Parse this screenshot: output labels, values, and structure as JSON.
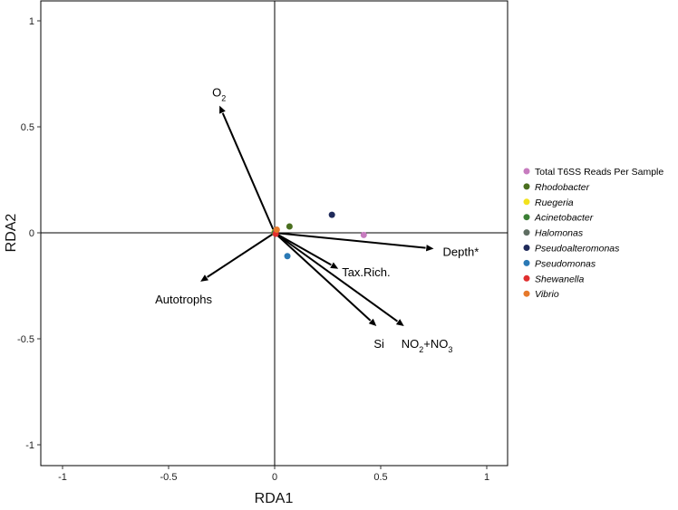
{
  "chart_data": {
    "type": "scatter",
    "title": "",
    "xlabel": "RDA1",
    "ylabel": "RDA2",
    "xlim": [
      -1.1,
      1.1
    ],
    "ylim": [
      -1.1,
      1.1
    ],
    "x_ticks": [
      -1,
      -0.5,
      0,
      0.5,
      1
    ],
    "x_tick_labels": [
      "-1",
      "-0.5",
      "0",
      "0.5",
      "1"
    ],
    "y_ticks": [
      1,
      0.5,
      0,
      -0.5,
      -1
    ],
    "y_tick_labels": [
      "1",
      "0.5",
      "0",
      "-0.5",
      "-1"
    ],
    "grid": false,
    "reference_lines": {
      "x": 0,
      "y": 0
    },
    "vectors": [
      {
        "name": "O2",
        "label": "O",
        "sub": "2",
        "tail": "",
        "x": -0.26,
        "y": 0.6
      },
      {
        "name": "Depth*",
        "label": "Depth*",
        "sub": "",
        "tail": "",
        "x": 0.75,
        "y": -0.075
      },
      {
        "name": "Tax.Rich.",
        "label": "Tax.Rich.",
        "sub": "",
        "tail": "",
        "x": 0.3,
        "y": -0.17
      },
      {
        "name": "Autotrophs",
        "label": "Autotrophs",
        "sub": "",
        "tail": "",
        "x": -0.35,
        "y": -0.23
      },
      {
        "name": "Si",
        "label": "Si",
        "sub": "",
        "tail": "",
        "x": 0.48,
        "y": -0.44
      },
      {
        "name": "NO2+NO3",
        "label": "NO",
        "sub": "2",
        "tail": "+NO",
        "sub2": "3",
        "x": 0.61,
        "y": -0.44
      }
    ],
    "series": [
      {
        "name": "Total T6SS Reads Per Sample",
        "italic": false,
        "color": "#c77cbf",
        "points": [
          [
            0.42,
            -0.01
          ]
        ]
      },
      {
        "name": "Rhodobacter",
        "italic": true,
        "color": "#4a6f1f",
        "points": [
          [
            0.07,
            0.03
          ]
        ]
      },
      {
        "name": "Ruegeria",
        "italic": true,
        "color": "#f2e21d",
        "points": [
          [
            0.0,
            0.005
          ]
        ]
      },
      {
        "name": "Acinetobacter",
        "italic": true,
        "color": "#3b7f35",
        "points": [
          [
            0.0,
            0.0
          ]
        ]
      },
      {
        "name": "Halomonas",
        "italic": true,
        "color": "#5f6e62",
        "points": [
          [
            0.005,
            0.008
          ]
        ]
      },
      {
        "name": "Pseudoalteromonas",
        "italic": true,
        "color": "#1f2a5a",
        "points": [
          [
            0.27,
            0.085
          ]
        ]
      },
      {
        "name": "Pseudomonas",
        "italic": true,
        "color": "#2a79b5",
        "points": [
          [
            0.06,
            -0.11
          ]
        ]
      },
      {
        "name": "Shewanella",
        "italic": true,
        "color": "#e02f2f",
        "points": [
          [
            0.005,
            -0.005
          ]
        ]
      },
      {
        "name": "Vibrio",
        "italic": true,
        "color": "#e6792b",
        "points": [
          [
            0.01,
            0.015
          ]
        ]
      }
    ]
  }
}
